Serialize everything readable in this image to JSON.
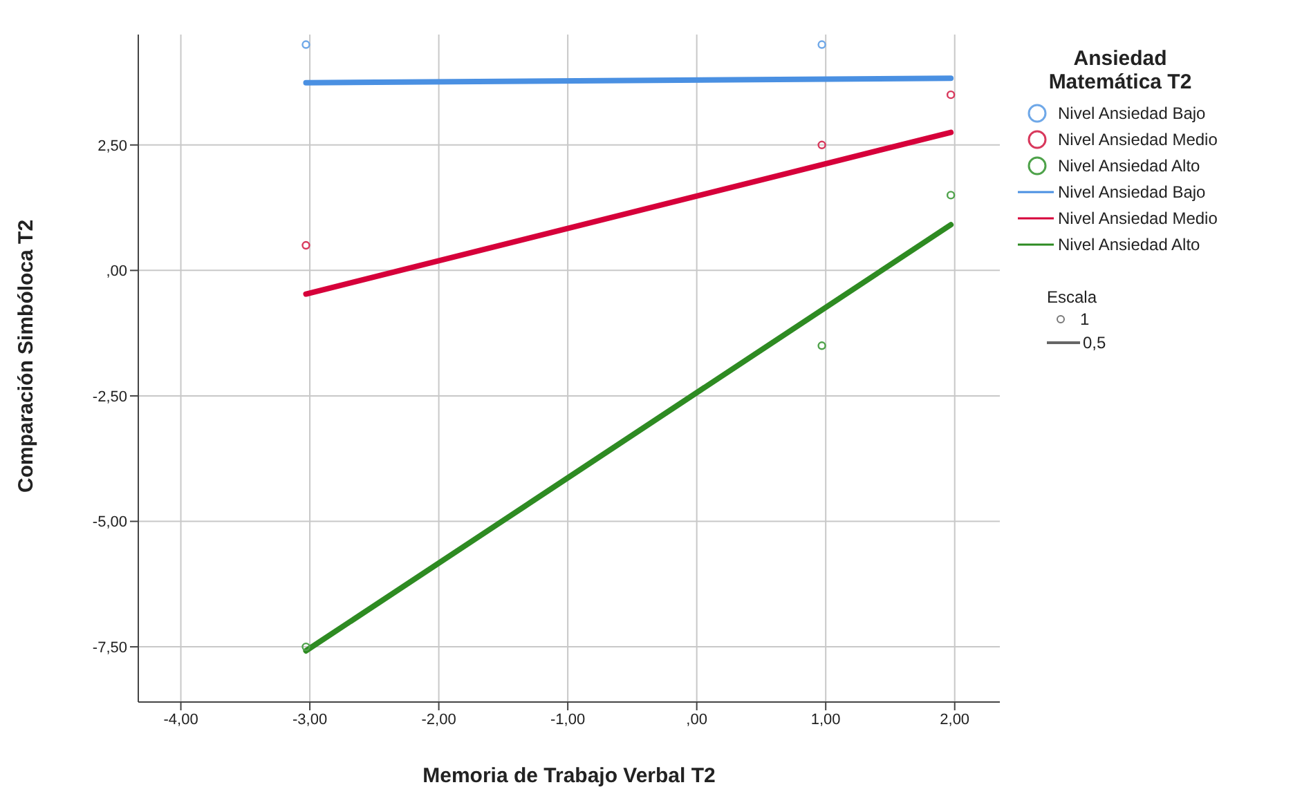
{
  "chart_data": {
    "type": "scatter",
    "xlabel": "Memoria de Trabajo Verbal T2",
    "ylabel": "Comparación Simbóloca T2",
    "legend_title": "Ansiedad Matemática T2",
    "xlim": [
      -4.33,
      2.35
    ],
    "xticks": [
      {
        "value": -4,
        "label": "-4,00"
      },
      {
        "value": -3,
        "label": "-3,00"
      },
      {
        "value": -2,
        "label": "-2,00"
      },
      {
        "value": -1,
        "label": "-1,00"
      },
      {
        "value": 0,
        "label": ",00"
      },
      {
        "value": 1,
        "label": "1,00"
      },
      {
        "value": 2,
        "label": "2,00"
      }
    ],
    "ylim": [
      -8.6,
      4.7
    ],
    "yticks": [
      {
        "value": -7.5,
        "label": "-7,50"
      },
      {
        "value": -5,
        "label": "-5,00"
      },
      {
        "value": -2.5,
        "label": "-2,50"
      },
      {
        "value": 0,
        "label": ",00"
      },
      {
        "value": 2.5,
        "label": "2,50"
      }
    ],
    "grid": true,
    "legend": "right",
    "annotations": [
      "Escala",
      "1",
      "0,5"
    ],
    "series": [
      {
        "name": "Nivel Ansiedad Bajo",
        "marker": "circle",
        "color": "#6fa8e8",
        "x": [
          -3.03,
          0.97
        ],
        "values": [
          4.5,
          4.5
        ]
      },
      {
        "name": "Nivel Ansiedad Medio",
        "marker": "circle",
        "color": "#d8385c",
        "x": [
          -3.03,
          0.97,
          1.97
        ],
        "values": [
          0.5,
          2.5,
          3.5
        ]
      },
      {
        "name": "Nivel Ansiedad Alto",
        "marker": "circle",
        "color": "#4ea24a",
        "x": [
          -3.03,
          0.97,
          1.97
        ],
        "values": [
          -7.5,
          -1.5,
          1.5
        ]
      },
      {
        "name": "Nivel Ansiedad Bajo",
        "type": "line",
        "marker": "none",
        "color": "#4a90e2",
        "x": [
          -3.03,
          1.97
        ],
        "values": [
          3.74,
          3.83
        ]
      },
      {
        "name": "Nivel Ansiedad Medio",
        "type": "line",
        "marker": "none",
        "color": "#d6003a",
        "x": [
          -3.03,
          1.97
        ],
        "values": [
          -0.47,
          2.75
        ]
      },
      {
        "name": "Nivel Ansiedad Alto",
        "type": "line",
        "marker": "none",
        "color": "#2e8b22",
        "x": [
          -3.03,
          1.97
        ],
        "values": [
          -7.58,
          0.91
        ]
      }
    ]
  }
}
